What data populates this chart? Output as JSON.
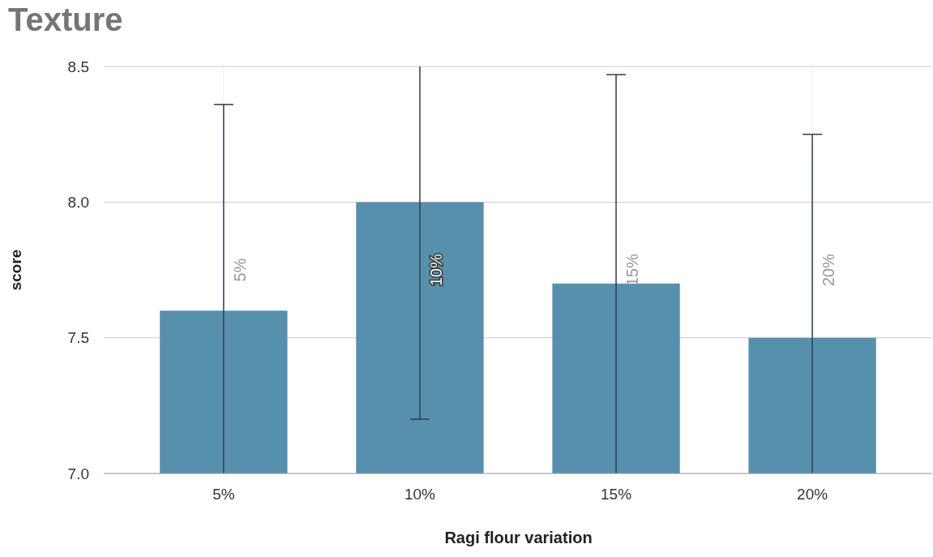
{
  "chart_data": {
    "type": "bar",
    "title": "Texture",
    "xlabel": "Ragi flour variation",
    "ylabel": "score",
    "categories": [
      "5%",
      "10%",
      "15%",
      "20%"
    ],
    "values": [
      7.6,
      8.0,
      7.7,
      7.5
    ],
    "errors": [
      [
        7.0,
        8.36
      ],
      [
        7.2,
        8.5
      ],
      [
        7.0,
        8.47
      ],
      [
        7.0,
        8.25
      ]
    ],
    "color": "#5790ad",
    "ylim": [
      7.0,
      8.5
    ],
    "yticks": [
      {
        "value": 7.0,
        "label": "7.0"
      },
      {
        "value": 7.5,
        "label": "7.5"
      },
      {
        "value": 8.0,
        "label": "8.0"
      },
      {
        "value": 8.5,
        "label": "8.5"
      }
    ],
    "grid": true,
    "annotations": [
      "5%",
      "10%",
      "15%",
      "20%"
    ]
  }
}
